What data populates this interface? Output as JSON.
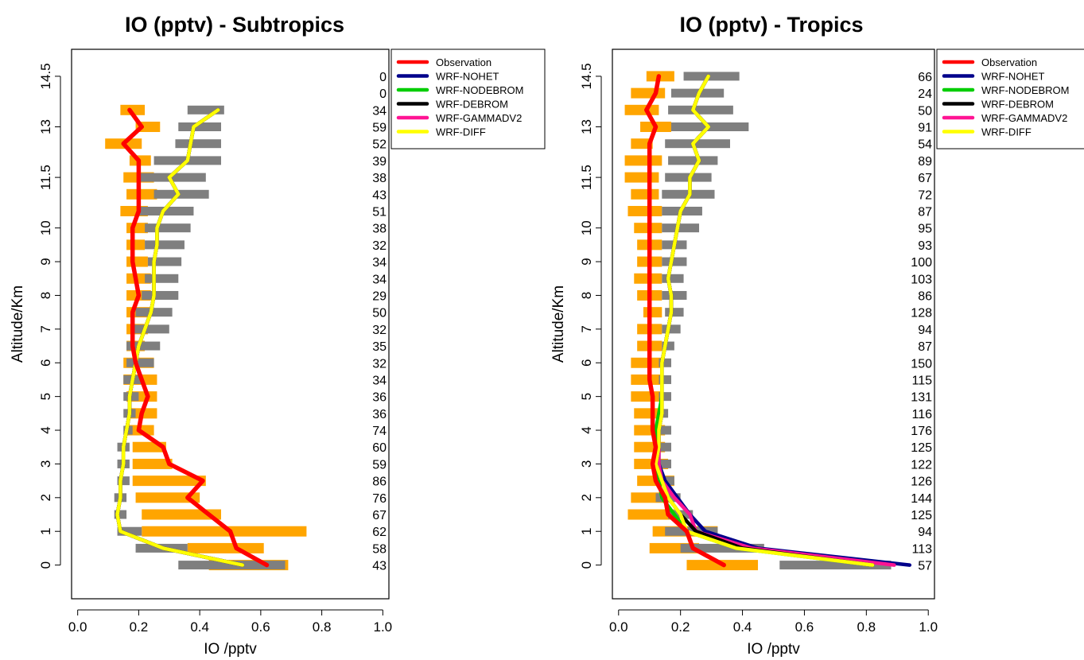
{
  "chart_data": [
    {
      "type": "line",
      "title": "IO (pptv) - Subtropics",
      "xlabel": "IO /pptv",
      "ylabel": "Altitude/Km",
      "xlim": [
        -0.02,
        1.02
      ],
      "ylim": [
        -1.0,
        15.3
      ],
      "x_ticks": [
        "0.0",
        "0.2",
        "0.4",
        "0.6",
        "0.8",
        "1.0"
      ],
      "y_ticks": [
        "0",
        "1",
        "2",
        "3",
        "4",
        "5",
        "6",
        "7",
        "8",
        "9",
        "10",
        "11.5",
        "13",
        "14.5"
      ],
      "legend_position": "top-right",
      "altitudes": [
        0,
        0.5,
        1,
        1.5,
        2,
        2.5,
        3,
        3.5,
        4,
        4.5,
        5,
        5.5,
        6,
        6.5,
        7,
        7.5,
        8,
        8.5,
        9,
        9.5,
        10,
        10.5,
        11,
        11.5,
        12,
        12.5,
        13,
        13.5,
        14,
        14.5
      ],
      "counts": [
        "43",
        "58",
        "62",
        "67",
        "76",
        "86",
        "59",
        "60",
        "74",
        "36",
        "36",
        "34",
        "32",
        "35",
        "32",
        "50",
        "29",
        "34",
        "34",
        "32",
        "38",
        "51",
        "43",
        "38",
        "39",
        "52",
        "59",
        "34",
        "0",
        "0"
      ],
      "obs_box": [
        [
          0.43,
          0.69
        ],
        [
          0.36,
          0.61
        ],
        [
          0.21,
          0.75
        ],
        [
          0.21,
          0.47
        ],
        [
          0.19,
          0.4
        ],
        [
          0.18,
          0.42
        ],
        [
          0.18,
          0.31
        ],
        [
          0.18,
          0.29
        ],
        [
          0.16,
          0.25
        ],
        [
          0.17,
          0.26
        ],
        [
          0.16,
          0.26
        ],
        [
          0.15,
          0.26
        ],
        [
          0.15,
          0.25
        ],
        [
          0.16,
          0.22
        ],
        [
          0.16,
          0.23
        ],
        [
          0.16,
          0.24
        ],
        [
          0.16,
          0.24
        ],
        [
          0.16,
          0.24
        ],
        [
          0.16,
          0.23
        ],
        [
          0.16,
          0.22
        ],
        [
          0.16,
          0.23
        ],
        [
          0.14,
          0.23
        ],
        [
          0.16,
          0.26
        ],
        [
          0.15,
          0.25
        ],
        [
          0.17,
          0.24
        ],
        [
          0.09,
          0.21
        ],
        [
          0.19,
          0.27
        ],
        [
          0.14,
          0.22
        ]
      ],
      "model_box": [
        [
          0.33,
          0.68
        ],
        [
          0.19,
          0.36
        ],
        [
          0.13,
          0.21
        ],
        [
          0.12,
          0.16
        ],
        [
          0.12,
          0.16
        ],
        [
          0.13,
          0.17
        ],
        [
          0.13,
          0.17
        ],
        [
          0.13,
          0.17
        ],
        [
          0.15,
          0.18
        ],
        [
          0.15,
          0.19
        ],
        [
          0.15,
          0.2
        ],
        [
          0.15,
          0.21
        ],
        [
          0.16,
          0.25
        ],
        [
          0.16,
          0.27
        ],
        [
          0.18,
          0.3
        ],
        [
          0.19,
          0.31
        ],
        [
          0.21,
          0.33
        ],
        [
          0.22,
          0.33
        ],
        [
          0.23,
          0.34
        ],
        [
          0.22,
          0.35
        ],
        [
          0.22,
          0.37
        ],
        [
          0.2,
          0.38
        ],
        [
          0.25,
          0.43
        ],
        [
          0.2,
          0.42
        ],
        [
          0.25,
          0.47
        ],
        [
          0.32,
          0.47
        ],
        [
          0.33,
          0.47
        ],
        [
          0.36,
          0.48
        ]
      ],
      "series": [
        {
          "name": "Observation",
          "color": "#ff0000",
          "width": 5.5,
          "values": [
            0.62,
            0.52,
            0.5,
            0.43,
            0.36,
            0.41,
            0.3,
            0.28,
            0.2,
            0.21,
            0.23,
            0.21,
            0.19,
            0.18,
            0.18,
            0.18,
            0.2,
            0.19,
            0.18,
            0.18,
            0.18,
            0.2,
            0.2,
            0.2,
            0.2,
            0.15,
            0.21,
            0.17
          ]
        },
        {
          "name": "WRF-NOHET",
          "color": "#00008b",
          "width": 4.5,
          "values": [
            0.54,
            0.28,
            0.14,
            0.13,
            0.14,
            0.14,
            0.15,
            0.15,
            0.16,
            0.17,
            0.17,
            0.18,
            0.19,
            0.2,
            0.22,
            0.24,
            0.25,
            0.25,
            0.25,
            0.26,
            0.26,
            0.28,
            0.33,
            0.3,
            0.36,
            0.37,
            0.38,
            0.46
          ]
        },
        {
          "name": "WRF-NODEBROM",
          "color": "#00cd00",
          "width": 4.5,
          "values": [
            0.54,
            0.28,
            0.14,
            0.13,
            0.14,
            0.14,
            0.15,
            0.15,
            0.16,
            0.17,
            0.17,
            0.18,
            0.19,
            0.2,
            0.22,
            0.24,
            0.25,
            0.25,
            0.25,
            0.26,
            0.26,
            0.28,
            0.33,
            0.3,
            0.36,
            0.37,
            0.38,
            0.46
          ]
        },
        {
          "name": "WRF-DEBROM",
          "color": "#000000",
          "width": 4.5,
          "values": [
            0.54,
            0.28,
            0.14,
            0.13,
            0.14,
            0.14,
            0.15,
            0.15,
            0.16,
            0.17,
            0.17,
            0.18,
            0.19,
            0.2,
            0.22,
            0.24,
            0.25,
            0.25,
            0.25,
            0.26,
            0.26,
            0.28,
            0.33,
            0.3,
            0.36,
            0.37,
            0.38,
            0.46
          ]
        },
        {
          "name": "WRF-GAMMADV2",
          "color": "#ff1493",
          "width": 4.5,
          "values": [
            0.54,
            0.28,
            0.14,
            0.13,
            0.14,
            0.14,
            0.15,
            0.15,
            0.16,
            0.17,
            0.17,
            0.18,
            0.19,
            0.2,
            0.22,
            0.24,
            0.25,
            0.25,
            0.25,
            0.26,
            0.26,
            0.28,
            0.33,
            0.3,
            0.36,
            0.37,
            0.38,
            0.46
          ]
        },
        {
          "name": "WRF-DIFF",
          "color": "#ffff00",
          "width": 4.5,
          "values": [
            0.54,
            0.28,
            0.14,
            0.13,
            0.14,
            0.14,
            0.15,
            0.15,
            0.16,
            0.17,
            0.17,
            0.18,
            0.19,
            0.2,
            0.22,
            0.24,
            0.25,
            0.25,
            0.25,
            0.26,
            0.26,
            0.28,
            0.33,
            0.3,
            0.36,
            0.37,
            0.38,
            0.46
          ]
        }
      ]
    },
    {
      "type": "line",
      "title": "IO (pptv) - Tropics",
      "xlabel": "IO /pptv",
      "ylabel": "Altitude/Km",
      "xlim": [
        -0.02,
        1.02
      ],
      "ylim": [
        -1.0,
        15.3
      ],
      "x_ticks": [
        "0.0",
        "0.2",
        "0.4",
        "0.6",
        "0.8",
        "1.0"
      ],
      "y_ticks": [
        "0",
        "1",
        "2",
        "3",
        "4",
        "5",
        "6",
        "7",
        "8",
        "9",
        "10",
        "11.5",
        "13",
        "14.5"
      ],
      "legend_position": "top-right",
      "altitudes": [
        0,
        0.5,
        1,
        1.5,
        2,
        2.5,
        3,
        3.5,
        4,
        4.5,
        5,
        5.5,
        6,
        6.5,
        7,
        7.5,
        8,
        8.5,
        9,
        9.5,
        10,
        10.5,
        11,
        11.5,
        12,
        12.5,
        13,
        13.5,
        14,
        14.5
      ],
      "counts": [
        "57",
        "113",
        "94",
        "125",
        "144",
        "126",
        "122",
        "125",
        "176",
        "116",
        "131",
        "115",
        "150",
        "87",
        "94",
        "128",
        "86",
        "103",
        "100",
        "93",
        "95",
        "87",
        "72",
        "67",
        "89",
        "54",
        "91",
        "50",
        "24",
        "66"
      ],
      "obs_box": [
        [
          0.22,
          0.45
        ],
        [
          0.1,
          0.26
        ],
        [
          0.11,
          0.32
        ],
        [
          0.03,
          0.18
        ],
        [
          0.04,
          0.17
        ],
        [
          0.06,
          0.18
        ],
        [
          0.05,
          0.16
        ],
        [
          0.05,
          0.15
        ],
        [
          0.05,
          0.15
        ],
        [
          0.05,
          0.14
        ],
        [
          0.04,
          0.14
        ],
        [
          0.04,
          0.14
        ],
        [
          0.04,
          0.14
        ],
        [
          0.06,
          0.14
        ],
        [
          0.06,
          0.14
        ],
        [
          0.08,
          0.14
        ],
        [
          0.06,
          0.14
        ],
        [
          0.05,
          0.14
        ],
        [
          0.06,
          0.14
        ],
        [
          0.06,
          0.14
        ],
        [
          0.05,
          0.14
        ],
        [
          0.03,
          0.14
        ],
        [
          0.04,
          0.13
        ],
        [
          0.02,
          0.13
        ],
        [
          0.02,
          0.14
        ],
        [
          0.04,
          0.11
        ],
        [
          0.07,
          0.17
        ],
        [
          0.02,
          0.13
        ],
        [
          0.04,
          0.15
        ],
        [
          0.09,
          0.18
        ]
      ],
      "model_box": [
        [
          0.52,
          0.88
        ],
        [
          0.2,
          0.47
        ],
        [
          0.15,
          0.32
        ],
        [
          0.16,
          0.24
        ],
        [
          0.12,
          0.2
        ],
        [
          0.13,
          0.18
        ],
        [
          0.13,
          0.17
        ],
        [
          0.13,
          0.17
        ],
        [
          0.13,
          0.17
        ],
        [
          0.13,
          0.16
        ],
        [
          0.13,
          0.17
        ],
        [
          0.13,
          0.17
        ],
        [
          0.13,
          0.17
        ],
        [
          0.14,
          0.18
        ],
        [
          0.14,
          0.2
        ],
        [
          0.15,
          0.21
        ],
        [
          0.14,
          0.22
        ],
        [
          0.14,
          0.21
        ],
        [
          0.14,
          0.22
        ],
        [
          0.14,
          0.22
        ],
        [
          0.14,
          0.26
        ],
        [
          0.14,
          0.27
        ],
        [
          0.14,
          0.31
        ],
        [
          0.15,
          0.3
        ],
        [
          0.16,
          0.32
        ],
        [
          0.15,
          0.36
        ],
        [
          0.17,
          0.42
        ],
        [
          0.16,
          0.37
        ],
        [
          0.17,
          0.34
        ],
        [
          0.21,
          0.39
        ]
      ],
      "series": [
        {
          "name": "Observation",
          "color": "#ff0000",
          "width": 5.5,
          "values": [
            0.34,
            0.24,
            0.22,
            0.16,
            0.15,
            0.12,
            0.11,
            0.12,
            0.11,
            0.11,
            0.11,
            0.1,
            0.1,
            0.1,
            0.1,
            0.1,
            0.1,
            0.1,
            0.1,
            0.1,
            0.1,
            0.1,
            0.1,
            0.1,
            0.1,
            0.1,
            0.12,
            0.09,
            0.12,
            0.13
          ]
        },
        {
          "name": "WRF-NOHET",
          "color": "#00008b",
          "width": 4.5,
          "values": [
            0.94,
            0.45,
            0.28,
            0.23,
            0.19,
            0.15,
            0.13,
            0.13,
            0.13,
            0.14,
            0.14,
            0.14,
            0.14,
            0.15,
            0.16,
            0.17,
            0.17,
            0.16,
            0.17,
            0.18,
            0.19,
            0.2,
            0.23,
            0.23,
            0.26,
            0.24,
            0.29,
            0.24,
            0.26,
            0.29
          ]
        },
        {
          "name": "WRF-NODEBROM",
          "color": "#00cd00",
          "width": 4.5,
          "values": [
            0.82,
            0.38,
            0.22,
            0.18,
            0.14,
            0.13,
            0.12,
            0.12,
            0.12,
            0.13,
            0.14,
            0.14,
            0.14,
            0.15,
            0.16,
            0.17,
            0.17,
            0.16,
            0.17,
            0.18,
            0.19,
            0.2,
            0.23,
            0.23,
            0.26,
            0.24,
            0.29,
            0.24,
            0.26,
            0.29
          ]
        },
        {
          "name": "WRF-DEBROM",
          "color": "#000000",
          "width": 4.5,
          "values": [
            0.82,
            0.4,
            0.25,
            0.2,
            0.16,
            0.14,
            0.12,
            0.13,
            0.13,
            0.14,
            0.14,
            0.14,
            0.14,
            0.15,
            0.16,
            0.17,
            0.17,
            0.16,
            0.17,
            0.18,
            0.19,
            0.2,
            0.23,
            0.23,
            0.26,
            0.24,
            0.29,
            0.24,
            0.26,
            0.29
          ]
        },
        {
          "name": "WRF-GAMMADV2",
          "color": "#ff1493",
          "width": 4.5,
          "values": [
            0.89,
            0.43,
            0.25,
            0.23,
            0.18,
            0.14,
            0.13,
            0.13,
            0.13,
            0.14,
            0.14,
            0.14,
            0.14,
            0.15,
            0.16,
            0.17,
            0.17,
            0.16,
            0.17,
            0.18,
            0.19,
            0.2,
            0.23,
            0.23,
            0.26,
            0.24,
            0.29,
            0.24,
            0.26,
            0.29
          ]
        },
        {
          "name": "WRF-DIFF",
          "color": "#ffff00",
          "width": 4.5,
          "values": [
            0.82,
            0.38,
            0.22,
            0.2,
            0.16,
            0.14,
            0.12,
            0.13,
            0.13,
            0.14,
            0.14,
            0.14,
            0.14,
            0.15,
            0.16,
            0.17,
            0.17,
            0.16,
            0.17,
            0.18,
            0.19,
            0.2,
            0.23,
            0.23,
            0.26,
            0.24,
            0.29,
            0.24,
            0.26,
            0.29
          ]
        }
      ]
    }
  ]
}
